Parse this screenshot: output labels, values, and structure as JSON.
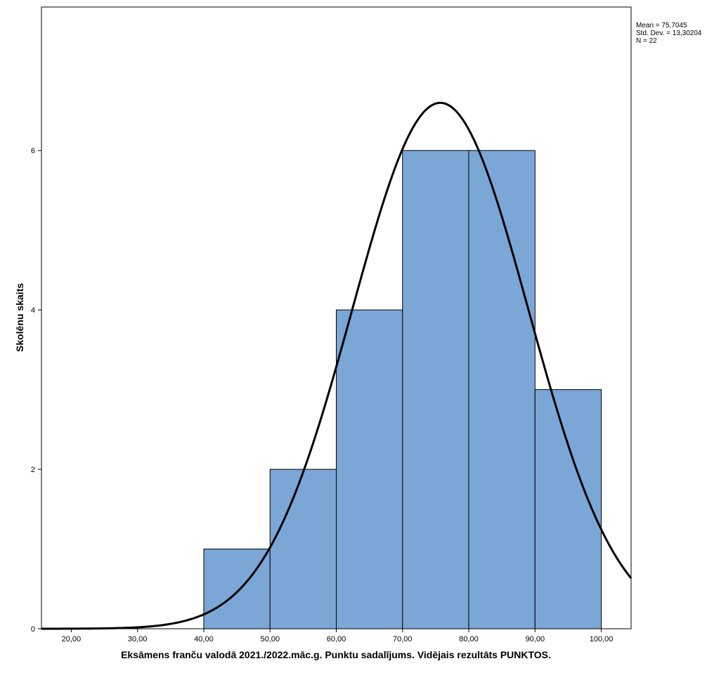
{
  "chart_data": {
    "type": "bar",
    "subtype": "histogram",
    "xlabel": "Eksāmens franču valodā 2021./2022.māc.g. Punktu sadalījums. Vidējais rezultāts PUNKTOS.",
    "ylabel": "Skolēnu skaits",
    "xlim": [
      15.5,
      104.5
    ],
    "ylim": [
      0,
      7.8
    ],
    "x_ticks": [
      20,
      30,
      40,
      50,
      60,
      70,
      80,
      90,
      100
    ],
    "x_tick_labels": [
      "20,00",
      "30,00",
      "40,00",
      "50,00",
      "60,00",
      "70,00",
      "80,00",
      "90,00",
      "100,00"
    ],
    "y_ticks": [
      0,
      2,
      4,
      6
    ],
    "y_tick_labels": [
      "0",
      "2",
      "4",
      "6"
    ],
    "bins": [
      {
        "from": 40,
        "to": 50,
        "count": 1
      },
      {
        "from": 50,
        "to": 60,
        "count": 2
      },
      {
        "from": 60,
        "to": 70,
        "count": 4
      },
      {
        "from": 70,
        "to": 80,
        "count": 6
      },
      {
        "from": 80,
        "to": 90,
        "count": 6
      },
      {
        "from": 90,
        "to": 100,
        "count": 3
      }
    ],
    "normal_curve": {
      "mean": 75.7045,
      "std": 13.30204,
      "n": 22,
      "bin_width": 10
    },
    "stats_labels": [
      "Mean = 75,7045",
      "Std. Dev. = 13,30204",
      "N = 22"
    ],
    "grid": false,
    "bar_color": "#7BA7D6",
    "bar_edge_color": "#000000",
    "curve_color": "#000000"
  }
}
